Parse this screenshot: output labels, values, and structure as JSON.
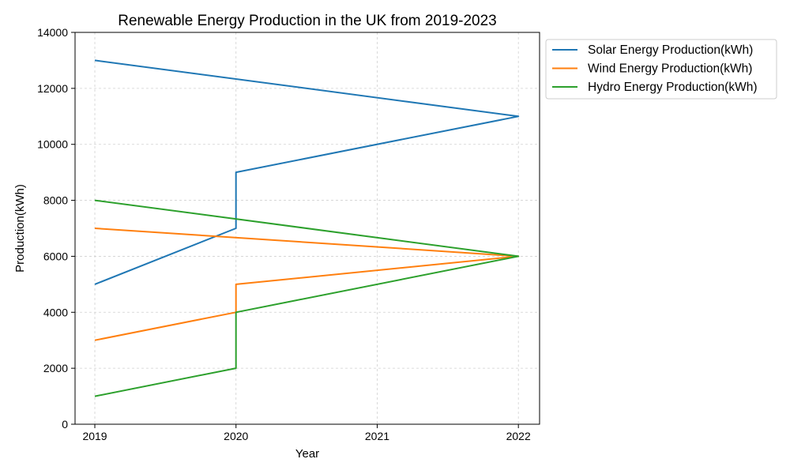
{
  "chart_data": {
    "type": "line",
    "title": "Renewable Energy Production in the UK from 2019-2023",
    "xlabel": "Year",
    "ylabel": "Production(kWh)",
    "x_ticks": [
      "2019",
      "2020",
      "2021",
      "2022"
    ],
    "y_ticks": [
      "0",
      "2000",
      "4000",
      "6000",
      "8000",
      "10000",
      "12000",
      "14000"
    ],
    "xlim": [
      2018.86,
      2022.15
    ],
    "ylim": [
      0,
      14000
    ],
    "grid": true,
    "legend_position": "outside-top-right",
    "x": [
      2019,
      2020,
      2020,
      2022,
      2019
    ],
    "series": [
      {
        "name": "Solar Energy Production(kWh)",
        "color": "#1f77b4",
        "values": [
          5000,
          7000,
          9000,
          11000,
          13000
        ]
      },
      {
        "name": "Wind Energy Production(kWh)",
        "color": "#ff7f0e",
        "values": [
          3000,
          4000,
          5000,
          6000,
          7000
        ]
      },
      {
        "name": "Hydro Energy Production(kWh)",
        "color": "#2ca02c",
        "values": [
          1000,
          2000,
          4000,
          6000,
          8000
        ]
      }
    ]
  }
}
